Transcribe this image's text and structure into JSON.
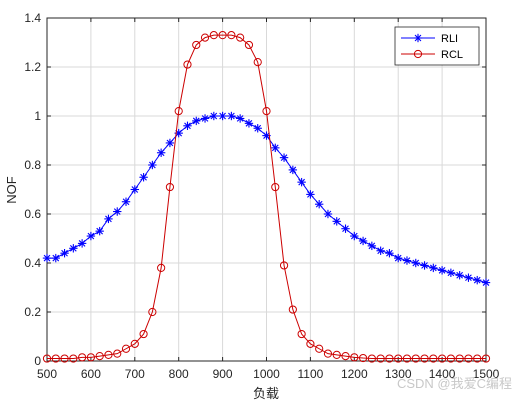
{
  "chart_data": {
    "type": "line",
    "xlabel": "负载",
    "ylabel": "NOF",
    "xlim": [
      500,
      1500
    ],
    "ylim": [
      0,
      1.4
    ],
    "xticks": [
      500,
      600,
      700,
      800,
      900,
      1000,
      1100,
      1200,
      1300,
      1400,
      1500
    ],
    "yticks": [
      0,
      0.2,
      0.4,
      0.6,
      0.8,
      1,
      1.2,
      1.4
    ],
    "xtick_labels": [
      "500",
      "600",
      "700",
      "800",
      "900",
      "1000",
      "1100",
      "1200",
      "1300",
      "1400",
      "1500"
    ],
    "ytick_labels": [
      "0",
      "0.2",
      "0.4",
      "0.6",
      "0.8",
      "1",
      "1.2",
      "1.4"
    ],
    "grid": true,
    "legend_position": "top-right",
    "series": [
      {
        "name": "RLI",
        "color": "#0000ff",
        "marker": "asterisk",
        "x": [
          500,
          520,
          540,
          560,
          580,
          600,
          620,
          640,
          660,
          680,
          700,
          720,
          740,
          760,
          780,
          800,
          820,
          840,
          860,
          880,
          900,
          920,
          940,
          960,
          980,
          1000,
          1020,
          1040,
          1060,
          1080,
          1100,
          1120,
          1140,
          1160,
          1180,
          1200,
          1220,
          1240,
          1260,
          1280,
          1300,
          1320,
          1340,
          1360,
          1380,
          1400,
          1420,
          1440,
          1460,
          1480,
          1500
        ],
        "y": [
          0.42,
          0.42,
          0.44,
          0.46,
          0.48,
          0.51,
          0.53,
          0.58,
          0.61,
          0.65,
          0.7,
          0.75,
          0.8,
          0.85,
          0.89,
          0.93,
          0.96,
          0.98,
          0.99,
          1.0,
          1.0,
          1.0,
          0.99,
          0.97,
          0.95,
          0.92,
          0.87,
          0.83,
          0.78,
          0.73,
          0.68,
          0.64,
          0.6,
          0.57,
          0.54,
          0.51,
          0.49,
          0.47,
          0.45,
          0.44,
          0.42,
          0.41,
          0.4,
          0.39,
          0.38,
          0.37,
          0.36,
          0.35,
          0.34,
          0.33,
          0.32
        ]
      },
      {
        "name": "RCL",
        "color": "#cc0000",
        "marker": "circle",
        "x": [
          500,
          520,
          540,
          560,
          580,
          600,
          620,
          640,
          660,
          680,
          700,
          720,
          740,
          760,
          780,
          800,
          820,
          840,
          860,
          880,
          900,
          920,
          940,
          960,
          980,
          1000,
          1020,
          1040,
          1060,
          1080,
          1100,
          1120,
          1140,
          1160,
          1180,
          1200,
          1220,
          1240,
          1260,
          1280,
          1300,
          1320,
          1340,
          1360,
          1380,
          1400,
          1420,
          1440,
          1460,
          1480,
          1500
        ],
        "y": [
          0.01,
          0.01,
          0.01,
          0.01,
          0.015,
          0.015,
          0.02,
          0.025,
          0.03,
          0.05,
          0.07,
          0.11,
          0.2,
          0.38,
          0.71,
          1.02,
          1.21,
          1.29,
          1.32,
          1.33,
          1.33,
          1.33,
          1.32,
          1.29,
          1.22,
          1.02,
          0.71,
          0.39,
          0.21,
          0.11,
          0.07,
          0.05,
          0.03,
          0.025,
          0.02,
          0.015,
          0.012,
          0.01,
          0.01,
          0.01,
          0.01,
          0.01,
          0.01,
          0.01,
          0.01,
          0.01,
          0.01,
          0.01,
          0.01,
          0.01,
          0.01
        ]
      }
    ]
  },
  "watermark": "CSDN @我爱C编程"
}
